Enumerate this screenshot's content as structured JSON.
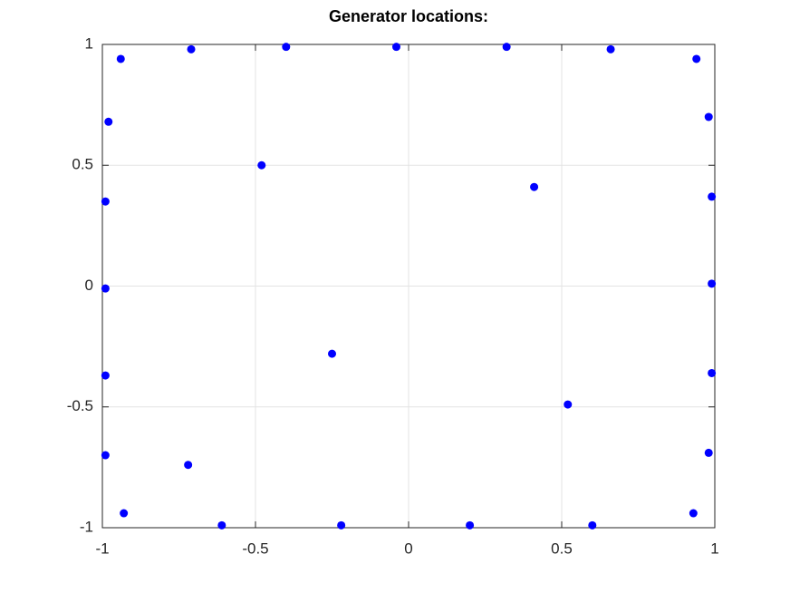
{
  "chart_data": {
    "type": "scatter",
    "title": "Generator locations:",
    "x": [
      -0.94,
      -0.71,
      -0.4,
      -0.04,
      0.32,
      0.66,
      0.94,
      -0.98,
      0.98,
      -0.48,
      0.41,
      -0.99,
      0.99,
      -0.99,
      0.99,
      -0.25,
      -0.99,
      0.99,
      0.52,
      -0.99,
      0.98,
      -0.72,
      -0.93,
      0.93,
      -0.61,
      -0.22,
      0.2,
      0.6
    ],
    "y": [
      0.94,
      0.98,
      0.99,
      0.99,
      0.99,
      0.98,
      0.94,
      0.68,
      0.7,
      0.5,
      0.41,
      0.35,
      0.37,
      -0.01,
      0.01,
      -0.28,
      -0.37,
      -0.36,
      -0.49,
      -0.7,
      -0.69,
      -0.74,
      -0.94,
      -0.94,
      -0.99,
      -0.99,
      -0.99,
      -0.99
    ],
    "color": "#0000ff",
    "xlim": [
      -1,
      1
    ],
    "ylim": [
      -1,
      1
    ],
    "xticks": [
      -1,
      -0.5,
      0,
      0.5,
      1
    ],
    "yticks": [
      -1,
      -0.5,
      0,
      0.5,
      1
    ],
    "grid": true
  }
}
